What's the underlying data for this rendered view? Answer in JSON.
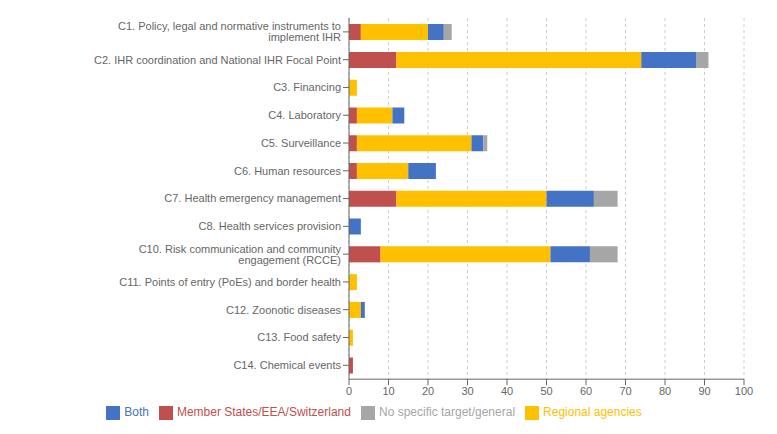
{
  "chart_data": {
    "type": "bar",
    "orientation": "horizontal",
    "stacked": true,
    "categories": [
      "C1. Policy, legal and normative instruments to implement IHR",
      "C2. IHR coordination and National IHR Focal Point",
      "C3. Financing",
      "C4. Laboratory",
      "C5. Surveillance",
      "C6. Human resources",
      "C7. Health emergency management",
      "C8. Health services provision",
      "C10. Risk communication and community engagement (RCCE)",
      "C11. Points of entry (PoEs) and border health",
      "C12. Zoonotic diseases",
      "C13. Food safety",
      "C14. Chemical events"
    ],
    "series": [
      {
        "name": "Member States/EEA/Switzerland",
        "color": "#C0504D",
        "values": [
          3,
          12,
          0,
          2,
          2,
          2,
          12,
          0,
          8,
          0,
          0,
          0,
          1
        ]
      },
      {
        "name": "Regional agencies",
        "color": "#FFC000",
        "values": [
          17,
          62,
          2,
          9,
          29,
          13,
          38,
          0,
          43,
          2,
          3,
          1,
          0
        ]
      },
      {
        "name": "Both",
        "color": "#4472C4",
        "values": [
          4,
          14,
          0,
          3,
          3,
          7,
          12,
          3,
          10,
          0,
          1,
          0,
          0
        ]
      },
      {
        "name": "No specific target/general",
        "color": "#A6A6A6",
        "values": [
          2,
          3,
          0,
          0,
          1,
          0,
          6,
          0,
          7,
          0,
          0,
          0,
          0
        ]
      }
    ],
    "xlim": [
      0,
      100
    ],
    "xticks": [
      0,
      10,
      20,
      30,
      40,
      50,
      60,
      70,
      80,
      90,
      100
    ],
    "grid": true,
    "legend": "bottom"
  }
}
